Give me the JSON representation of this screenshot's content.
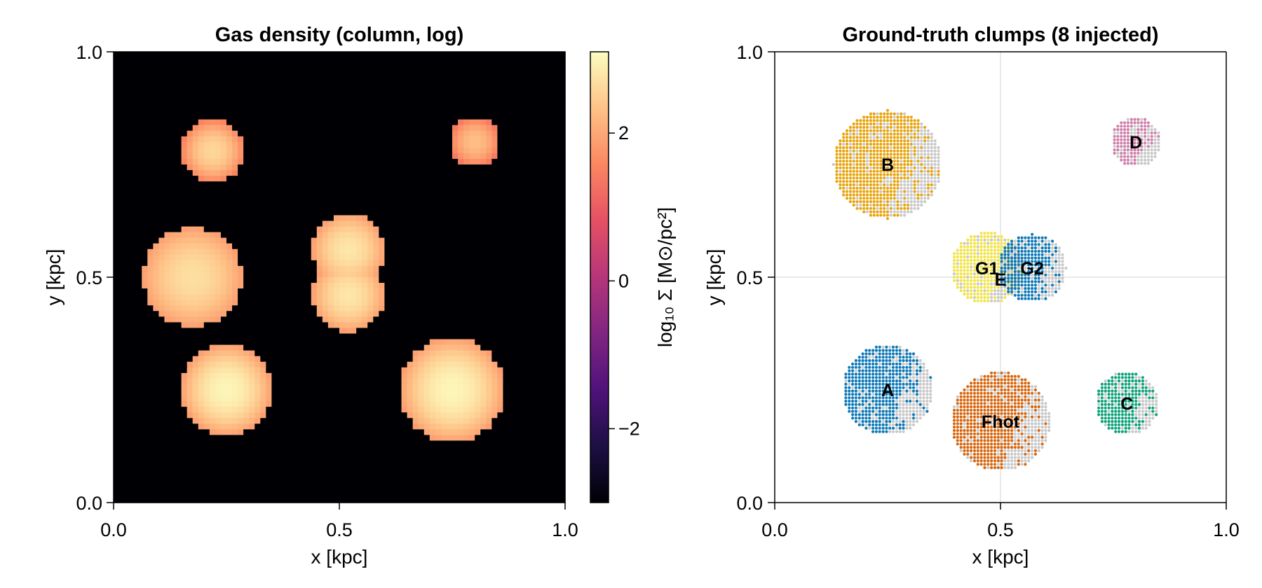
{
  "chart_data": [
    {
      "type": "heatmap",
      "title": "Gas density (column, log)",
      "xlabel": "x [kpc]",
      "ylabel": "y [kpc]",
      "xlim": [
        0,
        1
      ],
      "ylim": [
        0,
        1
      ],
      "xticks": [
        "0.0",
        "0.5",
        "1.0"
      ],
      "yticks": [
        "0.0",
        "0.5",
        "1.0"
      ],
      "colormap": "magma",
      "colorbar": {
        "label": "log₁₀ Σ [M⊙/pc²]",
        "range": [
          -3,
          3.1
        ],
        "ticks": [
          {
            "value": 2,
            "label": "2"
          },
          {
            "value": 0,
            "label": "0"
          },
          {
            "value": -2,
            "label": "−2"
          }
        ]
      },
      "background_value": -3,
      "blobs": [
        {
          "x": 0.22,
          "y": 0.78,
          "r": 0.07,
          "peak": 2.6,
          "edge": 1.5
        },
        {
          "x": 0.8,
          "y": 0.8,
          "r": 0.055,
          "peak": 2.3,
          "edge": 1.4
        },
        {
          "x": 0.175,
          "y": 0.5,
          "r": 0.11,
          "peak": 2.7,
          "edge": 1.9
        },
        {
          "x": 0.52,
          "y": 0.56,
          "r": 0.08,
          "peak": 2.8,
          "edge": 1.9
        },
        {
          "x": 0.52,
          "y": 0.46,
          "r": 0.08,
          "peak": 2.8,
          "edge": 1.9
        },
        {
          "x": 0.25,
          "y": 0.25,
          "r": 0.1,
          "peak": 3.0,
          "edge": 1.9
        },
        {
          "x": 0.75,
          "y": 0.25,
          "r": 0.115,
          "peak": 3.0,
          "edge": 1.9
        }
      ]
    },
    {
      "type": "scatter",
      "title": "Ground-truth clumps (8 injected)",
      "xlabel": "x [kpc]",
      "ylabel": "y [kpc]",
      "xlim": [
        0,
        1
      ],
      "ylim": [
        0,
        1
      ],
      "xticks": [
        "0.0",
        "0.5",
        "1.0"
      ],
      "yticks": [
        "0.0",
        "0.5",
        "1.0"
      ],
      "grid": true,
      "clumps": [
        {
          "label": "B",
          "x": 0.25,
          "y": 0.75,
          "r": 0.12,
          "color": "#e69f00"
        },
        {
          "label": "D",
          "x": 0.8,
          "y": 0.8,
          "r": 0.055,
          "color": "#cc79a7"
        },
        {
          "label": "G1",
          "x": 0.47,
          "y": 0.52,
          "r": 0.08,
          "color": "#f0e442"
        },
        {
          "label": "G2",
          "x": 0.57,
          "y": 0.52,
          "r": 0.075,
          "color": "#0072b2"
        },
        {
          "label": "A",
          "x": 0.25,
          "y": 0.25,
          "r": 0.1,
          "color": "#0072b2"
        },
        {
          "label": "Fhot",
          "x": 0.5,
          "y": 0.18,
          "r": 0.11,
          "color": "#d55e00"
        },
        {
          "label": "C",
          "x": 0.78,
          "y": 0.22,
          "r": 0.07,
          "color": "#009e73"
        }
      ],
      "annotations": [
        {
          "text": "E",
          "x": 0.5,
          "y": 0.495
        }
      ]
    }
  ]
}
